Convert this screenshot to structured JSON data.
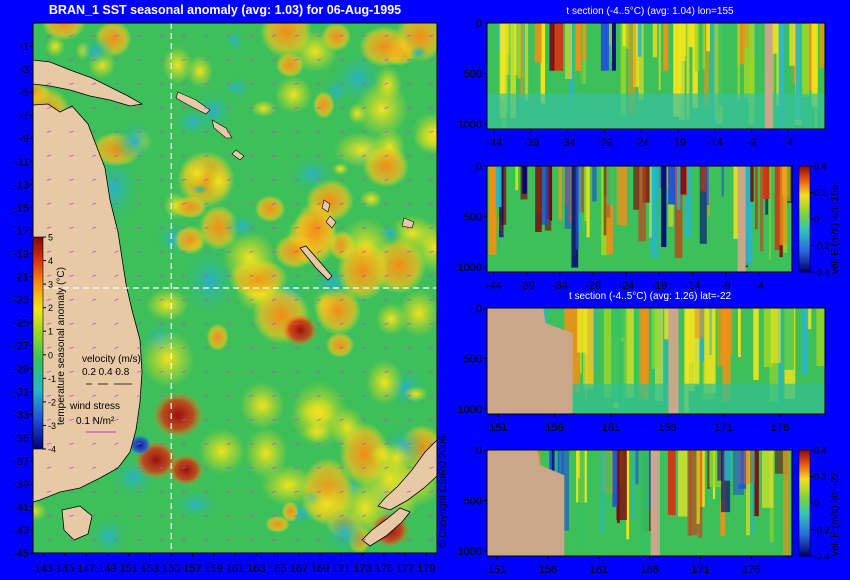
{
  "main_title": "BRAN_1 SST seasonal anomaly (avg: 1.03) for 06-Aug-1995",
  "copyright": "© Copyright CSIRO 2006",
  "legend": {
    "colorbar_label": "temperature seasonal anomaly (°C)",
    "velocity_label": "velocity (m/s)",
    "velocity_scale": "0.2 0.4 0.8",
    "wind_label": "wind stress",
    "wind_scale": "0.1 N/m²"
  },
  "colors": {
    "background": "#0000ff",
    "land": "#e8c9a5",
    "section_land": "#c8a889"
  },
  "chart_data": [
    {
      "type": "heatmap",
      "name": "map",
      "title": "BRAN_1 SST seasonal anomaly (avg: 1.03) for 06-Aug-1995",
      "x_ticks": [
        143,
        145,
        147,
        149,
        151,
        153,
        155,
        157,
        159,
        161,
        163,
        165,
        167,
        169,
        171,
        173,
        175,
        177,
        179
      ],
      "y_ticks": [
        -1,
        -3,
        -5,
        -7,
        -9,
        -11,
        -13,
        -15,
        -17,
        -19,
        -21,
        -23,
        -25,
        -27,
        -29,
        -31,
        -33,
        -35,
        -37,
        -39,
        -41,
        -43,
        -45
      ],
      "xlim": [
        142,
        180
      ],
      "ylim": [
        -45,
        1
      ],
      "crosshair": {
        "lon": 155,
        "lat": -22
      },
      "colorbar": {
        "ticks": [
          5,
          4,
          3,
          2,
          1,
          0,
          -1,
          -2,
          -3,
          -4
        ],
        "range": [
          -4,
          5
        ],
        "label": "temperature seasonal anomaly (°C)"
      }
    },
    {
      "type": "heatmap",
      "name": "section-1",
      "title": "t section (-4..5°C) (avg: 1.04) lon=155",
      "x_ticks": [
        -44,
        -39,
        -34,
        -29,
        -24,
        -19,
        -14,
        -9,
        -4
      ],
      "y_ticks": [
        0,
        500,
        1000
      ],
      "xlim": [
        -45,
        1
      ],
      "ylim": [
        1050,
        0
      ]
    },
    {
      "type": "heatmap",
      "name": "section-2",
      "title": "",
      "x_ticks": [
        -44,
        -39,
        -34,
        -29,
        -24,
        -19,
        -14,
        -9,
        -4
      ],
      "y_ticks": [
        0,
        500,
        1000
      ],
      "xlim": [
        -45,
        1
      ],
      "ylim": [
        1050,
        0
      ],
      "colorbar": {
        "ticks": [
          "0.4",
          "0.2",
          "0",
          "-0.2",
          "-0.4"
        ],
        "range": [
          -0.4,
          0.4
        ],
        "label": "vel. E (m/s) lon=155"
      }
    },
    {
      "type": "heatmap",
      "name": "section-3",
      "title": "t section (-4..5°C) (avg: 1.26) lat=-22",
      "x_ticks": [
        151,
        156,
        161,
        166,
        171,
        176
      ],
      "y_ticks": [
        0,
        500,
        1000
      ],
      "xlim": [
        150,
        180
      ],
      "ylim": [
        1050,
        0
      ]
    },
    {
      "type": "heatmap",
      "name": "section-4",
      "title": "",
      "x_ticks": [
        151,
        156,
        161,
        166,
        171,
        176
      ],
      "y_ticks": [
        0,
        500,
        1000
      ],
      "xlim": [
        150,
        180
      ],
      "ylim": [
        1050,
        0
      ],
      "colorbar": {
        "ticks": [
          "0.4",
          "0.2",
          "0",
          "-0.2",
          "-0.4"
        ],
        "range": [
          -0.4,
          0.4
        ],
        "label": "vel. E (m/s) lat=-22"
      }
    }
  ]
}
